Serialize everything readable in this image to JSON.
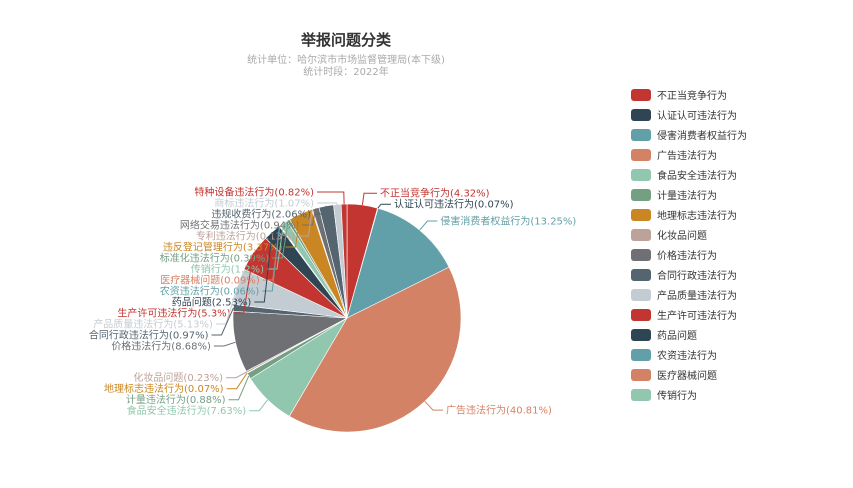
{
  "chart_data": {
    "type": "pie",
    "title": "举报问题分类",
    "subtitle_lines": [
      "统计单位：哈尔滨市市场监督管理局(本下级)",
      "统计时段：2022年"
    ],
    "legend_position": "right",
    "slices": [
      {
        "name": "不正当竞争行为",
        "value": 4.32,
        "label": "不正当竞争行为(4.32%)",
        "color": "#c23531"
      },
      {
        "name": "认证认可违法行为",
        "value": 0.07,
        "label": "认证认可违法行为(0.07%)",
        "color": "#2f4554"
      },
      {
        "name": "侵害消费者权益行为",
        "value": 13.25,
        "label": "侵害消费者权益行为(13.25%)",
        "color": "#61a0a8"
      },
      {
        "name": "广告违法行为",
        "value": 40.81,
        "label": "广告违法行为(40.81%)",
        "color": "#d48265"
      },
      {
        "name": "食品安全违法行为",
        "value": 7.63,
        "label": "食品安全违法行为(7.63%)",
        "color": "#91c7ae"
      },
      {
        "name": "计量违法行为",
        "value": 0.88,
        "label": "计量违法行为(0.88%)",
        "color": "#749f83"
      },
      {
        "name": "地理标志违法行为",
        "value": 0.07,
        "label": "地理标志违法行为(0.07%)",
        "color": "#ca8622"
      },
      {
        "name": "化妆品问题",
        "value": 0.23,
        "label": "化妆品问题(0.23%)",
        "color": "#bda29a"
      },
      {
        "name": "价格违法行为",
        "value": 8.68,
        "label": "价格违法行为(8.68%)",
        "color": "#6e7074"
      },
      {
        "name": "合同行政违法行为",
        "value": 0.97,
        "label": "合同行政违法行为(0.97%)",
        "color": "#546570"
      },
      {
        "name": "产品质量违法行为",
        "value": 5.13,
        "label": "产品质量违法行为(5.13%)",
        "color": "#c4ccd3"
      },
      {
        "name": "生产许可违法行为",
        "value": 5.3,
        "label": "生产许可违法行为(5.3%)",
        "color": "#c23531"
      },
      {
        "name": "药品问题",
        "value": 2.53,
        "label": "药品问题(2.53%)",
        "color": "#2f4554"
      },
      {
        "name": "农资违法行为",
        "value": 0.06,
        "label": "农资违法行为(0.06%)",
        "color": "#61a0a8"
      },
      {
        "name": "医疗器械问题",
        "value": 0.09,
        "label": "医疗器械问题(0.09%)",
        "color": "#d48265"
      },
      {
        "name": "传销行为",
        "value": 1.2,
        "label": "传销行为(1.2%)",
        "color": "#91c7ae"
      },
      {
        "name": "标准化违法行为",
        "value": 0.39,
        "label": "标准化违法行为(0.39%)",
        "color": "#749f83"
      },
      {
        "name": "违反登记管理行为",
        "value": 3.37,
        "label": "违反登记管理行为(3.37%)",
        "color": "#ca8622"
      },
      {
        "name": "专利违法行为",
        "value": 0.13,
        "label": "专利违法行为(0.13%)",
        "color": "#bda29a"
      },
      {
        "name": "网络交易违法行为",
        "value": 0.94,
        "label": "网络交易违法行为(0.94%)",
        "color": "#6e7074"
      },
      {
        "name": "违规收费行为",
        "value": 2.06,
        "label": "违规收费行为(2.06%)",
        "color": "#546570"
      },
      {
        "name": "商标违法行为",
        "value": 1.07,
        "label": "商标违法行为(1.07%)",
        "color": "#c4ccd3"
      },
      {
        "name": "特种设备违法行为",
        "value": 0.82,
        "label": "特种设备违法行为(0.82%)",
        "color": "#c23531"
      }
    ],
    "legend_items": [
      {
        "name": "不正当竞争行为",
        "color": "#c23531"
      },
      {
        "name": "认证认可违法行为",
        "color": "#2f4554"
      },
      {
        "name": "侵害消费者权益行为",
        "color": "#61a0a8"
      },
      {
        "name": "广告违法行为",
        "color": "#d48265"
      },
      {
        "name": "食品安全违法行为",
        "color": "#91c7ae"
      },
      {
        "name": "计量违法行为",
        "color": "#749f83"
      },
      {
        "name": "地理标志违法行为",
        "color": "#ca8622"
      },
      {
        "name": "化妆品问题",
        "color": "#bda29a"
      },
      {
        "name": "价格违法行为",
        "color": "#6e7074"
      },
      {
        "name": "合同行政违法行为",
        "color": "#546570"
      },
      {
        "name": "产品质量违法行为",
        "color": "#c4ccd3"
      },
      {
        "name": "生产许可违法行为",
        "color": "#c23531"
      },
      {
        "name": "药品问题",
        "color": "#2f4554"
      },
      {
        "name": "农资违法行为",
        "color": "#61a0a8"
      },
      {
        "name": "医疗器械问题",
        "color": "#d48265"
      },
      {
        "name": "传销行为",
        "color": "#91c7ae"
      }
    ]
  }
}
